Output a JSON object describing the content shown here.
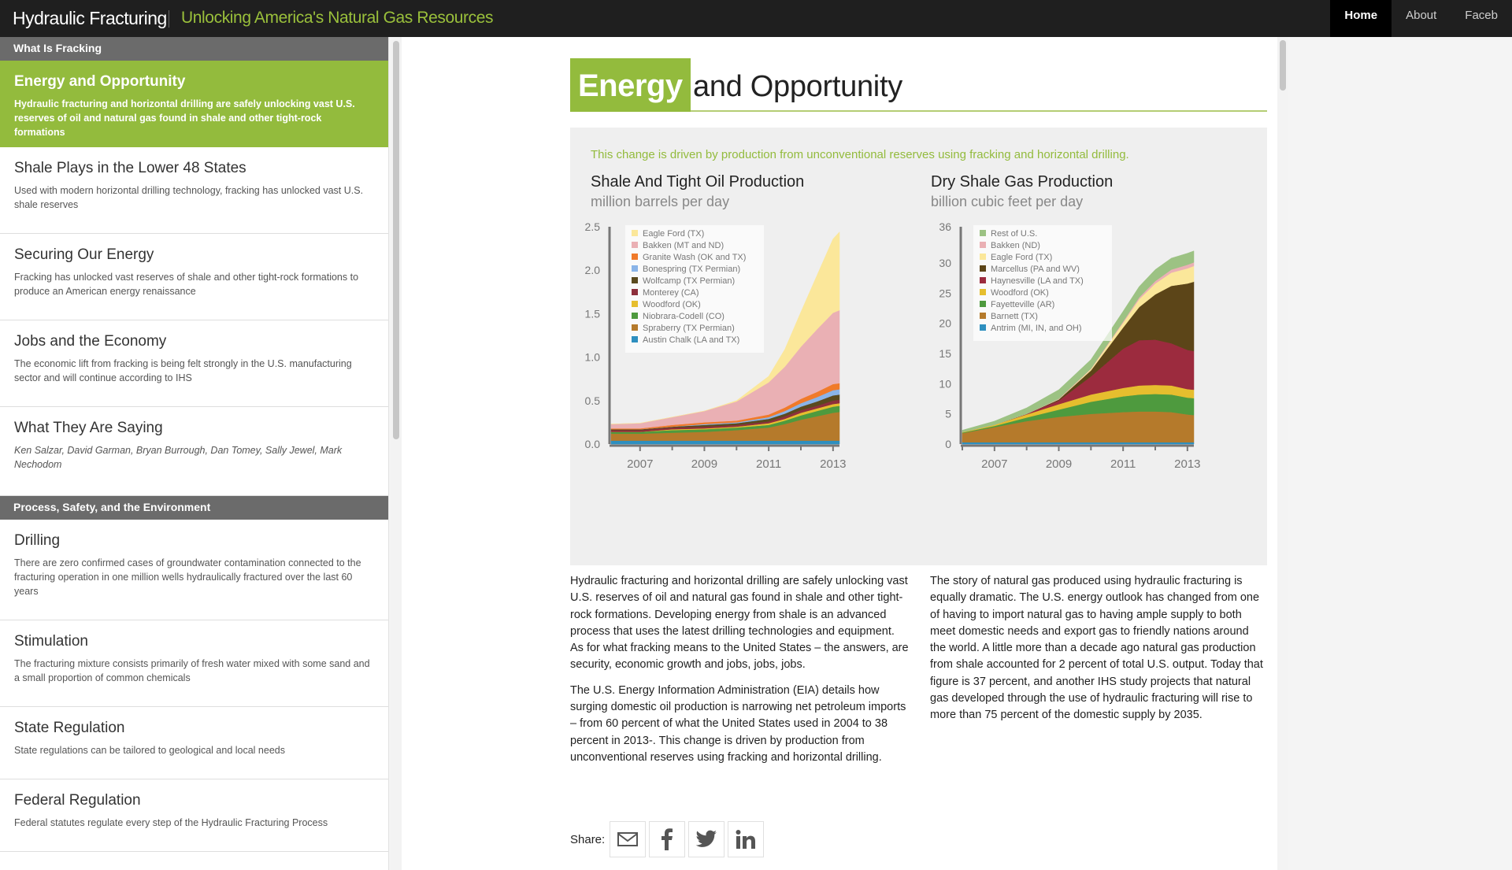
{
  "header": {
    "brand": "Hydraulic Fracturing",
    "tagline": "Unlocking America's Natural Gas Resources",
    "nav": [
      {
        "label": "Home",
        "active": true
      },
      {
        "label": "About",
        "active": false
      },
      {
        "label": "Faceb",
        "active": false
      }
    ]
  },
  "sidebar": {
    "sections": [
      {
        "header": "What Is Fracking",
        "items": [
          {
            "title": "Energy and Opportunity",
            "desc": "Hydraulic fracturing and horizontal drilling are safely unlocking vast U.S. reserves of oil and natural gas found in shale and other tight-rock formations",
            "active": true
          },
          {
            "title": "Shale Plays in the Lower 48 States",
            "desc": "Used with modern horizontal drilling technology, fracking has unlocked vast U.S. shale reserves"
          },
          {
            "title": "Securing Our Energy",
            "desc": "Fracking has unlocked vast reserves of shale and other tight-rock formations to produce an American energy renaissance"
          },
          {
            "title": "Jobs and the Economy",
            "desc": "The economic lift from fracking is being felt strongly in the U.S. manufacturing sector and will continue according to IHS"
          },
          {
            "title": "What They Are Saying",
            "desc": "Ken Salzar, David Garman, Bryan Burrough, Dan Tomey, Sally Jewel, Mark Nechodom"
          }
        ]
      },
      {
        "header": "Process, Safety, and the Environment",
        "items": [
          {
            "title": "Drilling",
            "desc": "There are zero confirmed cases of groundwater contamination connected to the fracturing operation in one million wells hydraulically fractured over the last 60 years"
          },
          {
            "title": "Stimulation",
            "desc": "The fracturing mixture consists primarily of fresh water mixed with some sand and a small proportion of common chemicals"
          },
          {
            "title": "State Regulation",
            "desc": "State regulations can be tailored to geological and local needs"
          },
          {
            "title": "Federal Regulation",
            "desc": "Federal statutes regulate every step of the Hydraulic Fracturing Process"
          }
        ]
      }
    ]
  },
  "main": {
    "title_highlight": "Energy",
    "title_rest": "and Opportunity",
    "chart_caption": "This change is driven by production from unconventional reserves using fracking and horizontal drilling.",
    "body_left": [
      "Hydraulic fracturing and horizontal drilling are safely unlocking vast U.S. reserves of oil and natural gas found in shale and other tight-rock formations. Developing energy from shale is an advanced process that uses the latest drilling technologies and equipment. As for what fracking means to the United States – the answers, are security, economic growth and jobs, jobs, jobs.",
      "The U.S. Energy Information Administration (EIA) details how surging domestic oil production is narrowing net petroleum imports – from 60 percent of what the United States used in 2004 to 38 percent in 2013-. This change is driven by production from unconventional reserves using fracking and horizontal drilling."
    ],
    "body_right": [
      "The story of natural gas produced using hydraulic fracturing is equally dramatic. The U.S. energy outlook has changed from one of having to import natural gas to having ample supply to both meet domestic needs and export gas to friendly nations around the world. A little more than a decade ago natural gas production from shale accounted for 2 percent of total U.S. output. Today that figure is 37 percent, and another IHS study projects that natural gas developed through the use of hydraulic fracturing will rise to more than 75 percent of the domestic supply by 2035."
    ],
    "share_label": "Share:",
    "share_icons": [
      "mail-icon",
      "facebook-icon",
      "twitter-icon",
      "linkedin-icon"
    ]
  },
  "chart_data": [
    {
      "type": "area",
      "stacked": true,
      "title": "Shale And Tight Oil Production",
      "ylabel": "million barrels per day",
      "xlim": [
        2006.1,
        2013.2
      ],
      "ylim": [
        0,
        2.5
      ],
      "yticks": [
        0.0,
        0.5,
        1.0,
        1.5,
        2.0,
        2.5
      ],
      "ytick_labels": [
        "0.0",
        "0.5",
        "1.0",
        "1.5",
        "2.0",
        "2.5"
      ],
      "xticks": [
        2007,
        2009,
        2011,
        2013
      ],
      "legend_position": "top-left",
      "x": [
        2006.1,
        2007,
        2008,
        2009,
        2010,
        2011,
        2011.5,
        2012,
        2012.5,
        2013,
        2013.2
      ],
      "series": [
        {
          "name": "Austin Chalk (LA and TX)",
          "color": "#2e8fbf",
          "values": [
            0.04,
            0.04,
            0.04,
            0.04,
            0.04,
            0.04,
            0.04,
            0.04,
            0.04,
            0.04,
            0.04
          ]
        },
        {
          "name": "Spraberry (TX Permian)",
          "color": "#b57a2b",
          "values": [
            0.08,
            0.08,
            0.09,
            0.1,
            0.12,
            0.15,
            0.19,
            0.24,
            0.28,
            0.32,
            0.33
          ]
        },
        {
          "name": "Niobrara-Codell (CO)",
          "color": "#4e9a3e",
          "values": [
            0.02,
            0.02,
            0.03,
            0.03,
            0.03,
            0.03,
            0.04,
            0.05,
            0.06,
            0.07,
            0.07
          ]
        },
        {
          "name": "Woodford (OK)",
          "color": "#e6be2e",
          "values": [
            0.0,
            0.0,
            0.01,
            0.01,
            0.01,
            0.02,
            0.02,
            0.03,
            0.03,
            0.03,
            0.03
          ]
        },
        {
          "name": "Monterey (CA)",
          "color": "#8e2f3c",
          "values": [
            0.02,
            0.02,
            0.02,
            0.02,
            0.02,
            0.02,
            0.03,
            0.03,
            0.03,
            0.04,
            0.04
          ]
        },
        {
          "name": "Wolfcamp (TX Permian)",
          "color": "#5a4a1e",
          "values": [
            0.01,
            0.01,
            0.01,
            0.02,
            0.02,
            0.03,
            0.03,
            0.04,
            0.05,
            0.06,
            0.06
          ]
        },
        {
          "name": "Bonespring (TX Permian)",
          "color": "#8ab4e8",
          "values": [
            0.0,
            0.0,
            0.0,
            0.01,
            0.01,
            0.02,
            0.03,
            0.04,
            0.05,
            0.06,
            0.06
          ]
        },
        {
          "name": "Granite Wash (OK and TX)",
          "color": "#f07a2a",
          "values": [
            0.01,
            0.01,
            0.02,
            0.02,
            0.02,
            0.03,
            0.04,
            0.05,
            0.06,
            0.07,
            0.07
          ]
        },
        {
          "name": "Bakken (MT and ND)",
          "color": "#eab0b4",
          "values": [
            0.05,
            0.06,
            0.09,
            0.13,
            0.22,
            0.37,
            0.47,
            0.6,
            0.72,
            0.82,
            0.84
          ]
        },
        {
          "name": "Eagle Ford (TX)",
          "color": "#fbe79a",
          "values": [
            0.0,
            0.0,
            0.0,
            0.0,
            0.01,
            0.07,
            0.2,
            0.4,
            0.62,
            0.85,
            0.9
          ]
        }
      ]
    },
    {
      "type": "area",
      "stacked": true,
      "title": "Dry Shale Gas Production",
      "ylabel": "billion cubic feet per day",
      "xlim": [
        2006,
        2013.2
      ],
      "ylim": [
        0,
        36
      ],
      "yticks": [
        0,
        5,
        10,
        15,
        20,
        25,
        30,
        36
      ],
      "ytick_labels": [
        "0",
        "5",
        "10",
        "15",
        "20",
        "25",
        "30",
        "36"
      ],
      "xticks": [
        2007,
        2009,
        2011,
        2013
      ],
      "legend_position": "top-left",
      "x": [
        2006,
        2007,
        2008,
        2009,
        2010,
        2011,
        2011.5,
        2012,
        2012.5,
        2013,
        2013.2
      ],
      "series": [
        {
          "name": "Antrim (MI, IN, and OH)",
          "color": "#2e8fbf",
          "values": [
            0.3,
            0.3,
            0.3,
            0.3,
            0.3,
            0.3,
            0.3,
            0.3,
            0.3,
            0.3,
            0.3
          ]
        },
        {
          "name": "Barnett (TX)",
          "color": "#b57a2b",
          "values": [
            1.5,
            2.5,
            3.5,
            4.2,
            4.7,
            5.0,
            5.1,
            5.1,
            5.0,
            4.6,
            4.5
          ]
        },
        {
          "name": "Fayetteville (AR)",
          "color": "#4e9a3e",
          "values": [
            0.1,
            0.2,
            0.6,
            1.2,
            2.0,
            2.6,
            2.8,
            2.9,
            2.9,
            2.8,
            2.8
          ]
        },
        {
          "name": "Woodford (OK)",
          "color": "#e6be2e",
          "values": [
            0.1,
            0.2,
            0.5,
            0.9,
            1.2,
            1.4,
            1.5,
            1.5,
            1.5,
            1.4,
            1.4
          ]
        },
        {
          "name": "Haynesville (LA and TX)",
          "color": "#9c2b3e",
          "values": [
            0.0,
            0.0,
            0.1,
            0.6,
            3.0,
            6.5,
            7.5,
            7.5,
            7.0,
            6.5,
            6.4
          ]
        },
        {
          "name": "Marcellus (PA and WV)",
          "color": "#5c4518",
          "values": [
            0.0,
            0.0,
            0.0,
            0.2,
            1.0,
            3.5,
            5.5,
            7.5,
            9.5,
            11.0,
            11.5
          ]
        },
        {
          "name": "Eagle Ford (TX)",
          "color": "#fbe79a",
          "values": [
            0.0,
            0.0,
            0.0,
            0.0,
            0.2,
            0.8,
            1.3,
            1.8,
            2.2,
            2.5,
            2.6
          ]
        },
        {
          "name": "Bakken (ND)",
          "color": "#eab0b4",
          "values": [
            0.0,
            0.0,
            0.0,
            0.1,
            0.1,
            0.2,
            0.3,
            0.4,
            0.5,
            0.6,
            0.6
          ]
        },
        {
          "name": "Rest of U.S.",
          "color": "#9cc283",
          "values": [
            0.3,
            0.6,
            1.0,
            1.5,
            1.5,
            1.7,
            1.8,
            1.9,
            1.9,
            1.9,
            1.9
          ]
        }
      ]
    }
  ]
}
